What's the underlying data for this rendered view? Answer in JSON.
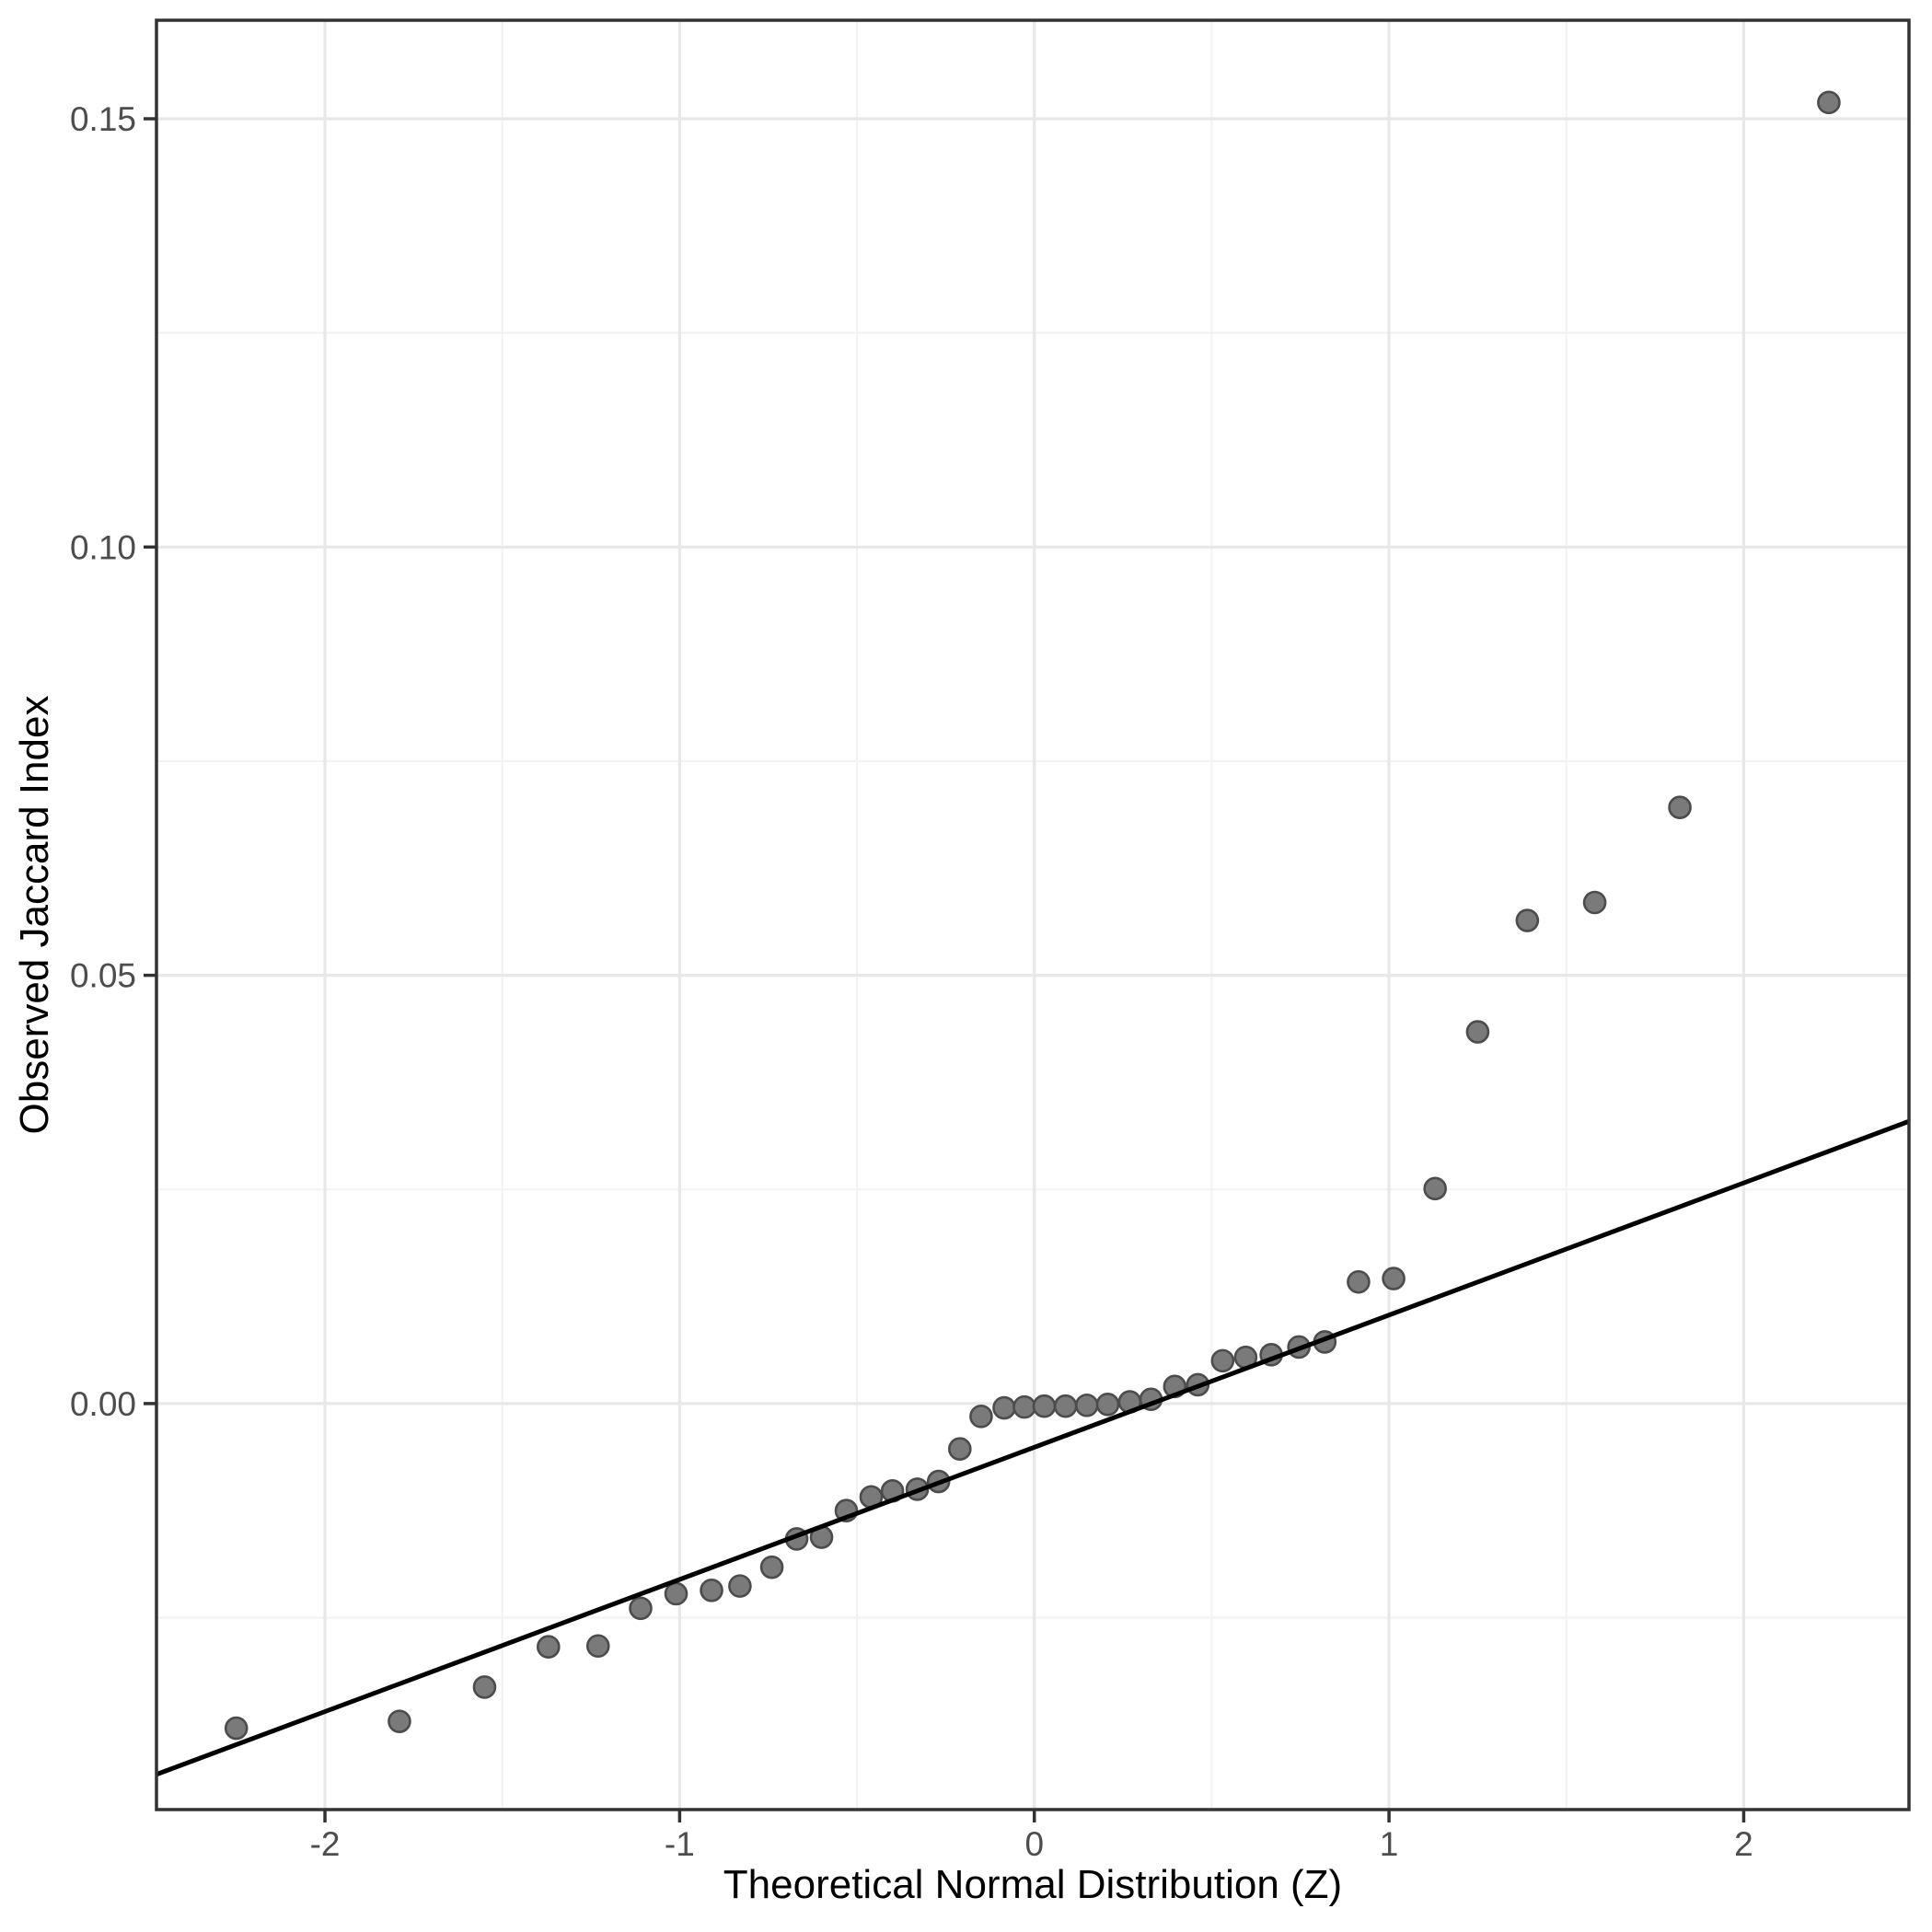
{
  "chart_data": {
    "type": "scatter",
    "subtype": "qq-plot",
    "title": "",
    "xlabel": "Theoretical Normal Distribution (Z)",
    "ylabel": "Observed Jaccard Index",
    "xlim": [
      -2.475,
      2.466
    ],
    "ylim": [
      -0.0474,
      0.1615
    ],
    "grid": true,
    "legend": "none",
    "x_ticks": {
      "values": [
        -2,
        -1,
        0,
        1,
        2
      ],
      "labels": [
        "-2",
        "-1",
        "0",
        "1",
        "2"
      ]
    },
    "y_ticks": {
      "values": [
        0.0,
        0.05,
        0.1,
        0.15
      ],
      "labels": [
        "0.00",
        "0.05",
        "0.10",
        "0.15"
      ]
    },
    "x_minor_gridlines": [
      -1.5,
      -0.5,
      0.5,
      1.5
    ],
    "y_minor_gridlines": [
      -0.025,
      0.025,
      0.075,
      0.125
    ],
    "reference_line": {
      "slope": 0.01543,
      "intercept": -0.0051
    },
    "points": [
      {
        "x": -2.25,
        "y": -0.0379
      },
      {
        "x": -1.79,
        "y": -0.0371
      },
      {
        "x": -1.55,
        "y": -0.0331
      },
      {
        "x": -1.37,
        "y": -0.0284
      },
      {
        "x": -1.23,
        "y": -0.0283
      },
      {
        "x": -1.11,
        "y": -0.0239
      },
      {
        "x": -1.01,
        "y": -0.0222
      },
      {
        "x": -0.91,
        "y": -0.0218
      },
      {
        "x": -0.83,
        "y": -0.0213
      },
      {
        "x": -0.74,
        "y": -0.0191
      },
      {
        "x": -0.67,
        "y": -0.0158
      },
      {
        "x": -0.6,
        "y": -0.0156
      },
      {
        "x": -0.53,
        "y": -0.0125
      },
      {
        "x": -0.46,
        "y": -0.0109
      },
      {
        "x": -0.4,
        "y": -0.0102
      },
      {
        "x": -0.33,
        "y": -0.01
      },
      {
        "x": -0.27,
        "y": -0.0091
      },
      {
        "x": -0.21,
        "y": -0.0053
      },
      {
        "x": -0.15,
        "y": -0.0015
      },
      {
        "x": -0.085,
        "y": -0.0005
      },
      {
        "x": -0.028,
        "y": -0.0004
      },
      {
        "x": 0.028,
        "y": -0.0003
      },
      {
        "x": 0.088,
        "y": -0.0003
      },
      {
        "x": 0.148,
        "y": -0.0002
      },
      {
        "x": 0.207,
        "y": -0.0001
      },
      {
        "x": 0.269,
        "y": 0.0002
      },
      {
        "x": 0.329,
        "y": 0.0005
      },
      {
        "x": 0.396,
        "y": 0.002
      },
      {
        "x": 0.461,
        "y": 0.0022
      },
      {
        "x": 0.531,
        "y": 0.005
      },
      {
        "x": 0.596,
        "y": 0.0054
      },
      {
        "x": 0.668,
        "y": 0.0057
      },
      {
        "x": 0.746,
        "y": 0.0066
      },
      {
        "x": 0.819,
        "y": 0.0072
      },
      {
        "x": 0.914,
        "y": 0.0142
      },
      {
        "x": 1.013,
        "y": 0.0146
      },
      {
        "x": 1.13,
        "y": 0.0251
      },
      {
        "x": 1.25,
        "y": 0.0434
      },
      {
        "x": 1.39,
        "y": 0.0564
      },
      {
        "x": 1.58,
        "y": 0.0585
      },
      {
        "x": 1.82,
        "y": 0.0696
      },
      {
        "x": 2.24,
        "y": 0.1519
      }
    ],
    "colors": {
      "background": "#ffffff",
      "panel_background": "#ffffff",
      "grid_major": "#e8e8e8",
      "grid_minor": "#f2f2f2",
      "panel_border": "#333333",
      "tick_mark": "#333333",
      "tick_label": "#4d4d4d",
      "axis_title": "#000000",
      "point_fill": "#7a7a7a",
      "point_stroke": "#4c4c4c",
      "reference_line": "#000000"
    }
  }
}
